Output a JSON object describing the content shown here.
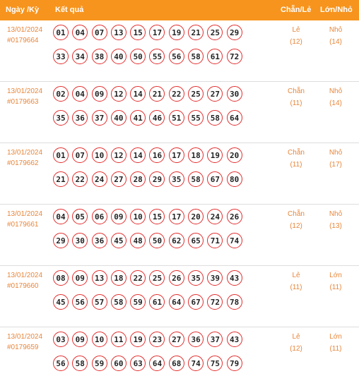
{
  "headers": {
    "date": "Ngày /Kỳ",
    "result": "Kết quả",
    "even_odd": "Chẵn/Lẻ",
    "big_small": "Lớn/Nhỏ"
  },
  "rows": [
    {
      "date": "13/01/2024",
      "draw": "#0179664",
      "line1": [
        "01",
        "04",
        "07",
        "13",
        "15",
        "17",
        "19",
        "21",
        "25",
        "29"
      ],
      "line2": [
        "33",
        "34",
        "38",
        "40",
        "50",
        "55",
        "56",
        "58",
        "61",
        "72"
      ],
      "even_odd": "Lẻ",
      "even_odd_count": "(12)",
      "big_small": "Nhỏ",
      "big_small_count": "(14)"
    },
    {
      "date": "13/01/2024",
      "draw": "#0179663",
      "line1": [
        "02",
        "04",
        "09",
        "12",
        "14",
        "21",
        "22",
        "25",
        "27",
        "30"
      ],
      "line2": [
        "35",
        "36",
        "37",
        "40",
        "41",
        "46",
        "51",
        "55",
        "58",
        "64"
      ],
      "even_odd": "Chẵn",
      "even_odd_count": "(11)",
      "big_small": "Nhỏ",
      "big_small_count": "(14)"
    },
    {
      "date": "13/01/2024",
      "draw": "#0179662",
      "line1": [
        "01",
        "07",
        "10",
        "12",
        "14",
        "16",
        "17",
        "18",
        "19",
        "20"
      ],
      "line2": [
        "21",
        "22",
        "24",
        "27",
        "28",
        "29",
        "35",
        "58",
        "67",
        "80"
      ],
      "even_odd": "Chẵn",
      "even_odd_count": "(11)",
      "big_small": "Nhỏ",
      "big_small_count": "(17)"
    },
    {
      "date": "13/01/2024",
      "draw": "#0179661",
      "line1": [
        "04",
        "05",
        "06",
        "09",
        "10",
        "15",
        "17",
        "20",
        "24",
        "26"
      ],
      "line2": [
        "29",
        "30",
        "36",
        "45",
        "48",
        "50",
        "62",
        "65",
        "71",
        "74"
      ],
      "even_odd": "Chẵn",
      "even_odd_count": "(12)",
      "big_small": "Nhỏ",
      "big_small_count": "(13)"
    },
    {
      "date": "13/01/2024",
      "draw": "#0179660",
      "line1": [
        "08",
        "09",
        "13",
        "18",
        "22",
        "25",
        "26",
        "35",
        "39",
        "43"
      ],
      "line2": [
        "45",
        "56",
        "57",
        "58",
        "59",
        "61",
        "64",
        "67",
        "72",
        "78"
      ],
      "even_odd": "Lẻ",
      "even_odd_count": "(11)",
      "big_small": "Lớn",
      "big_small_count": "(11)"
    },
    {
      "date": "13/01/2024",
      "draw": "#0179659",
      "line1": [
        "03",
        "09",
        "10",
        "11",
        "19",
        "23",
        "27",
        "36",
        "37",
        "43"
      ],
      "line2": [
        "56",
        "58",
        "59",
        "60",
        "63",
        "64",
        "68",
        "74",
        "75",
        "79"
      ],
      "even_odd": "Lẻ",
      "even_odd_count": "(12)",
      "big_small": "Lớn",
      "big_small_count": "(11)"
    }
  ],
  "colors": {
    "header_bg": "#f7941d",
    "accent_text": "#e8863a",
    "ball_border": "#e32b2b"
  }
}
